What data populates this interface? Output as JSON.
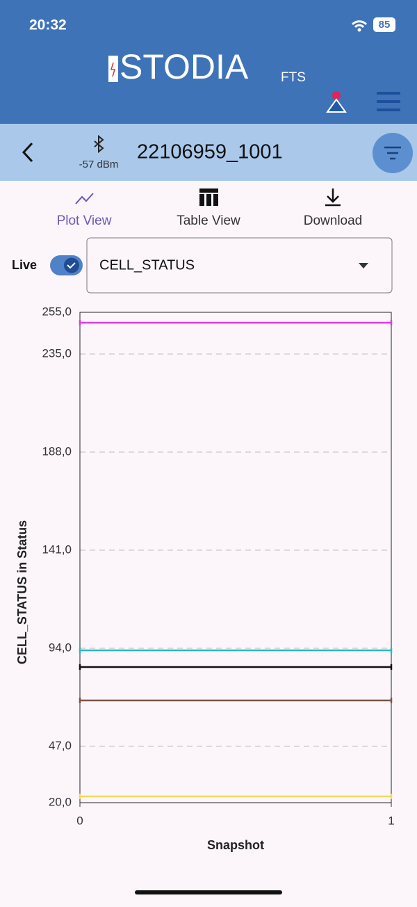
{
  "status_bar": {
    "time": "20:32",
    "battery": "85"
  },
  "header": {
    "logo": "STODIA",
    "logo_suffix": "FTS"
  },
  "device_bar": {
    "rssi": "-57 dBm",
    "device_id": "22106959_1001"
  },
  "tabs": [
    "Plot View",
    "Table View",
    "Download"
  ],
  "controls": {
    "live_label": "Live",
    "selected_signal": "CELL_STATUS"
  },
  "chart_data": {
    "type": "line",
    "x_label": "Snapshot",
    "y_label": "CELL_STATUS in Status",
    "x": [
      0,
      1
    ],
    "series": [
      {
        "color": "#d63ee6",
        "values": [
          250,
          250
        ]
      },
      {
        "color": "#26b9c9",
        "values": [
          93,
          93
        ]
      },
      {
        "color": "#111111",
        "values": [
          85,
          85
        ]
      },
      {
        "color": "#7a5548",
        "values": [
          69,
          69
        ]
      },
      {
        "color": "#f2d95c",
        "values": [
          23,
          23
        ]
      }
    ],
    "xlim": [
      0,
      1
    ],
    "xticks": [
      0,
      1
    ],
    "ylim": [
      20,
      255
    ],
    "yticks": [
      {
        "value": 20,
        "label": "20,0"
      },
      {
        "value": 47,
        "label": "47,0"
      },
      {
        "value": 94,
        "label": "94,0"
      },
      {
        "value": 141,
        "label": "141,0"
      },
      {
        "value": 188,
        "label": "188,0"
      },
      {
        "value": 235,
        "label": "235,0"
      },
      {
        "value": 255,
        "label": "255,0"
      }
    ],
    "grid": true
  }
}
